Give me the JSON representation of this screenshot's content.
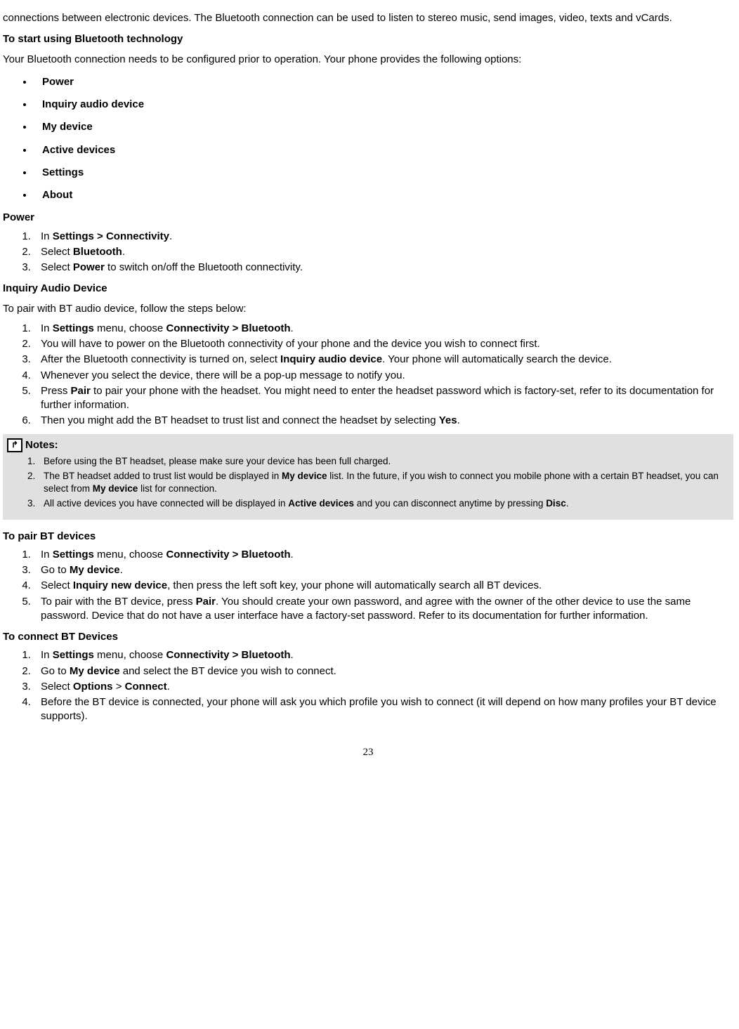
{
  "intro": {
    "line1": "connections between electronic devices. The Bluetooth connection can be used to listen to stereo music, send images, video, texts and vCards."
  },
  "h_start": "To start using Bluetooth technology",
  "start_desc": "Your Bluetooth connection needs to be configured prior to operation. Your phone provides the following options:",
  "options": {
    "power": "Power",
    "inquiry": "Inquiry audio device",
    "mydev": "My device",
    "active": "Active devices",
    "settings": "Settings",
    "about": "About"
  },
  "h_power": "Power",
  "power_steps": {
    "s1a": "In ",
    "s1b": "Settings > Connectivity",
    "s1c": ".",
    "s2a": "Select ",
    "s2b": "Bluetooth",
    "s2c": ".",
    "s3a": "Select ",
    "s3b": "Power",
    "s3c": " to switch on/off the Bluetooth connectivity."
  },
  "h_inquiry": "Inquiry Audio Device",
  "inquiry_desc": "To pair with BT audio device, follow the steps below:",
  "inquiry_steps": {
    "s1a": "In ",
    "s1b": "Settings",
    "s1c": " menu, choose ",
    "s1d": "Connectivity > Bluetooth",
    "s1e": ".",
    "s2": "You will have to power on the Bluetooth connectivity of your phone and the device you wish to connect first.",
    "s3a": "After the Bluetooth connectivity is turned on, select ",
    "s3b": "Inquiry audio device",
    "s3c": ". Your phone will automatically search the device.",
    "s4": "Whenever you select the device, there will be a pop-up message to notify you.",
    "s5a": "Press ",
    "s5b": "Pair",
    "s5c": " to pair your phone with the headset. You might need to enter the headset password which is factory-set, refer to its documentation for further information.",
    "s6a": "Then you might add the BT headset to trust list and connect the headset by selecting ",
    "s6b": "Yes",
    "s6c": "."
  },
  "notes": {
    "label": "Notes:",
    "icon": "↱",
    "n1": "Before using the BT headset, please make sure your device has been full charged.",
    "n2a": "The BT headset added to trust list would be displayed in ",
    "n2b": "My device",
    "n2c": " list. In the future, if you wish to connect you mobile phone with a certain BT headset, you can select from ",
    "n2d": "My device",
    "n2e": " list for connection.",
    "n3a": "All active devices you have connected will be displayed in ",
    "n3b": "Active devices",
    "n3c": " and you can disconnect anytime by pressing ",
    "n3d": "Disc",
    "n3e": "."
  },
  "h_pair": "To pair BT devices",
  "pair_steps": {
    "s1a": "In ",
    "s1b": "Settings",
    "s1c": " menu, choose ",
    "s1d": "Connectivity > Bluetooth",
    "s1e": ".",
    "s3a": "Go to ",
    "s3b": "My device",
    "s3c": ".",
    "s4a": "Select ",
    "s4b": "Inquiry new device",
    "s4c": ", then press the left soft key, your phone will automatically search all BT devices.",
    "s5a": "To pair with the BT device, press ",
    "s5b": "Pair",
    "s5c": ". You should create your own password, and agree with the owner of the other device to use the same password. Device that do not have a user interface have a factory-set password. Refer to its documentation for further information."
  },
  "h_connect": "To connect BT Devices",
  "connect_steps": {
    "s1a": "In ",
    "s1b": "Settings",
    "s1c": " menu, choose ",
    "s1d": "Connectivity > Bluetooth",
    "s1e": ".",
    "s2a": "Go to ",
    "s2b": "My device",
    "s2c": " and select the BT device you wish to connect.",
    "s3a": "Select ",
    "s3b": "Options",
    "s3c": " > ",
    "s3d": "Connect",
    "s3e": ".",
    "s4": "Before the BT device is connected, your phone will ask you which profile you wish to connect (it will depend on how many profiles your BT device supports)."
  },
  "page_number": "23"
}
